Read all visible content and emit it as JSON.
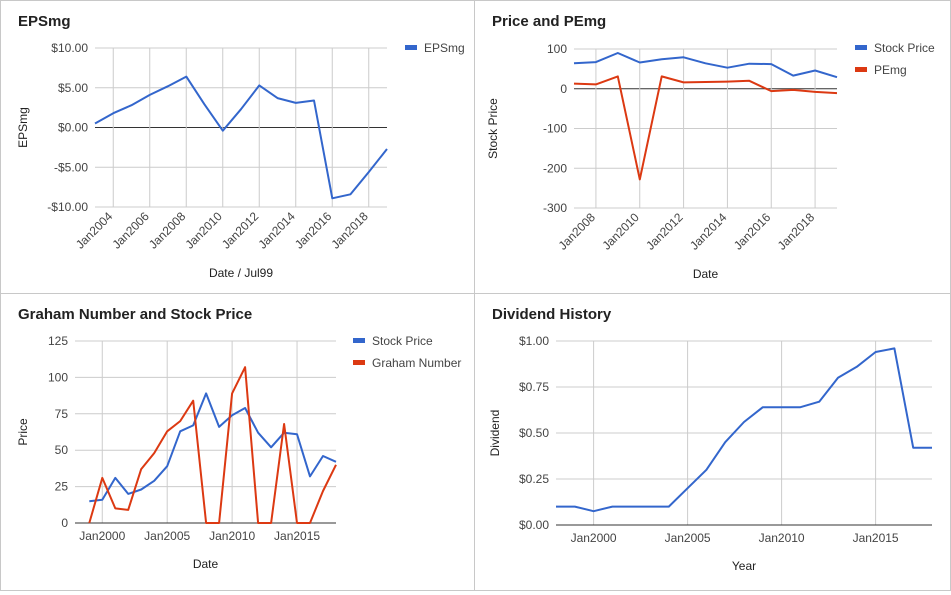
{
  "colors": {
    "blue": "#3366cc",
    "red": "#dc3912",
    "grid": "#cccccc",
    "zero": "#333333",
    "tick_text": "#444444"
  },
  "panels": [
    {
      "title": "EPSmg"
    },
    {
      "title": "Price and PEmg"
    },
    {
      "title": "Graham Number and Stock Price"
    },
    {
      "title": "Dividend History"
    }
  ],
  "chart_data": [
    {
      "type": "line",
      "title": "EPSmg",
      "xlabel": "Date / Jul99",
      "ylabel": "EPSmg",
      "x": [
        2003,
        2004,
        2005,
        2006,
        2007,
        2008,
        2009,
        2010,
        2011,
        2012,
        2013,
        2014,
        2015,
        2016,
        2017,
        2018,
        2019
      ],
      "xlim": [
        2003,
        2019
      ],
      "ylim": [
        -10,
        10
      ],
      "y_ticks": [
        10,
        5,
        0,
        -5,
        -10
      ],
      "y_tick_labels": [
        "$10.00",
        "$5.00",
        "$0.00",
        "-$5.00",
        "-$10.00"
      ],
      "x_ticks": [
        2004,
        2006,
        2008,
        2010,
        2012,
        2014,
        2016,
        2018
      ],
      "x_tick_labels": [
        "Jan2004",
        "Jan2006",
        "Jan2008",
        "Jan2010",
        "Jan2012",
        "Jan2014",
        "Jan2016",
        "Jan2018"
      ],
      "legend_position": "right",
      "grid": true,
      "series": [
        {
          "name": "EPSmg",
          "color": "#3366cc",
          "values": [
            0.5,
            1.8,
            2.8,
            4.1,
            5.2,
            6.4,
            2.9,
            -0.4,
            2.3,
            5.3,
            3.7,
            3.1,
            3.4,
            -8.9,
            -8.4,
            -5.6,
            -2.7
          ]
        }
      ]
    },
    {
      "type": "line",
      "title": "Price and PEmg",
      "xlabel": "Date",
      "ylabel": "Stock Price",
      "x": [
        2007,
        2008,
        2009,
        2010,
        2011,
        2012,
        2013,
        2014,
        2015,
        2016,
        2017,
        2018,
        2019
      ],
      "xlim": [
        2007,
        2019
      ],
      "ylim": [
        -300,
        100
      ],
      "y_ticks": [
        100,
        0,
        -100,
        -200,
        -300
      ],
      "y_tick_labels": [
        "100",
        "0",
        "-100",
        "-200",
        "-300"
      ],
      "x_ticks": [
        2008,
        2010,
        2012,
        2014,
        2016,
        2018
      ],
      "x_tick_labels": [
        "Jan2008",
        "Jan2010",
        "Jan2012",
        "Jan2014",
        "Jan2016",
        "Jan2018"
      ],
      "legend_position": "right",
      "grid": true,
      "series": [
        {
          "name": "Stock Price",
          "color": "#3366cc",
          "values": [
            64,
            67,
            90,
            66,
            74,
            79,
            64,
            53,
            63,
            62,
            33,
            46,
            29
          ]
        },
        {
          "name": "PEmg",
          "color": "#dc3912",
          "values": [
            13,
            11,
            31,
            -228,
            31,
            16,
            17,
            18,
            20,
            -6,
            -3,
            -8,
            -11
          ]
        }
      ]
    },
    {
      "type": "line",
      "title": "Graham Number and Stock Price",
      "xlabel": "Date",
      "ylabel": "Price",
      "x": [
        1999,
        2000,
        2001,
        2002,
        2003,
        2004,
        2005,
        2006,
        2007,
        2008,
        2009,
        2010,
        2011,
        2012,
        2013,
        2014,
        2015,
        2016,
        2017,
        2018
      ],
      "xlim": [
        1997.9,
        2018
      ],
      "ylim": [
        0,
        125
      ],
      "y_ticks": [
        0,
        25,
        50,
        75,
        100,
        125
      ],
      "y_tick_labels": [
        "0",
        "25",
        "50",
        "75",
        "100",
        "125"
      ],
      "x_ticks": [
        2000,
        2005,
        2010,
        2015
      ],
      "x_tick_labels": [
        "Jan2000",
        "Jan2005",
        "Jan2010",
        "Jan2015"
      ],
      "legend_position": "right",
      "grid": true,
      "series": [
        {
          "name": "Stock Price",
          "color": "#3366cc",
          "values": [
            15,
            16,
            31,
            20,
            23,
            29,
            39,
            63,
            67,
            89,
            66,
            74,
            79,
            62,
            52,
            62,
            61,
            32,
            46,
            42
          ]
        },
        {
          "name": "Graham Number",
          "color": "#dc3912",
          "values": [
            0,
            31,
            10,
            9,
            37,
            48,
            63,
            70,
            84,
            0,
            0,
            89,
            107,
            0,
            0,
            68,
            0,
            0,
            22,
            40
          ]
        }
      ]
    },
    {
      "type": "line",
      "title": "Dividend History",
      "xlabel": "Year",
      "ylabel": "Dividend",
      "x": [
        1998,
        1999,
        2000,
        2001,
        2002,
        2003,
        2004,
        2005,
        2006,
        2007,
        2008,
        2009,
        2010,
        2011,
        2012,
        2013,
        2014,
        2015,
        2016,
        2017,
        2018
      ],
      "xlim": [
        1998,
        2018
      ],
      "ylim": [
        0,
        1
      ],
      "y_ticks": [
        0,
        0.25,
        0.5,
        0.75,
        1
      ],
      "y_tick_labels": [
        "$0.00",
        "$0.25",
        "$0.50",
        "$0.75",
        "$1.00"
      ],
      "x_ticks": [
        2000,
        2005,
        2010,
        2015
      ],
      "x_tick_labels": [
        "Jan2000",
        "Jan2005",
        "Jan2010",
        "Jan2015"
      ],
      "grid": true,
      "series": [
        {
          "color": "#3366cc",
          "values": [
            0.1,
            0.1,
            0.075,
            0.1,
            0.1,
            0.1,
            0.1,
            0.2,
            0.3,
            0.45,
            0.56,
            0.64,
            0.64,
            0.64,
            0.67,
            0.8,
            0.86,
            0.94,
            0.96,
            0.42,
            0.42
          ]
        }
      ]
    }
  ]
}
